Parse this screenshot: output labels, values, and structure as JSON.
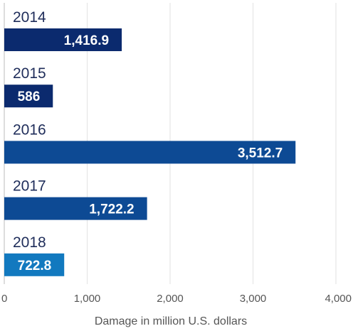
{
  "chart_data": {
    "type": "bar",
    "orientation": "horizontal",
    "categories": [
      "2014",
      "2015",
      "2016",
      "2017",
      "2018"
    ],
    "values": [
      1416.9,
      586,
      3512.7,
      1722.2,
      722.8
    ],
    "value_labels": [
      "1,416.9",
      "586",
      "3,512.7",
      "1,722.2",
      "722.8"
    ],
    "bar_colors": [
      "#0b2a6e",
      "#0b2a6e",
      "#0d4a94",
      "#0d4a94",
      "#1279bf"
    ],
    "xlabel": "Damage in million U.S. dollars",
    "ylabel": "",
    "xlim": [
      0,
      4000
    ],
    "xticks": [
      0,
      1000,
      2000,
      3000,
      4000
    ],
    "xtick_labels": [
      "0",
      "1,000",
      "2,000",
      "3,000",
      "4,000"
    ],
    "grid": "vertical",
    "legend": "none"
  }
}
